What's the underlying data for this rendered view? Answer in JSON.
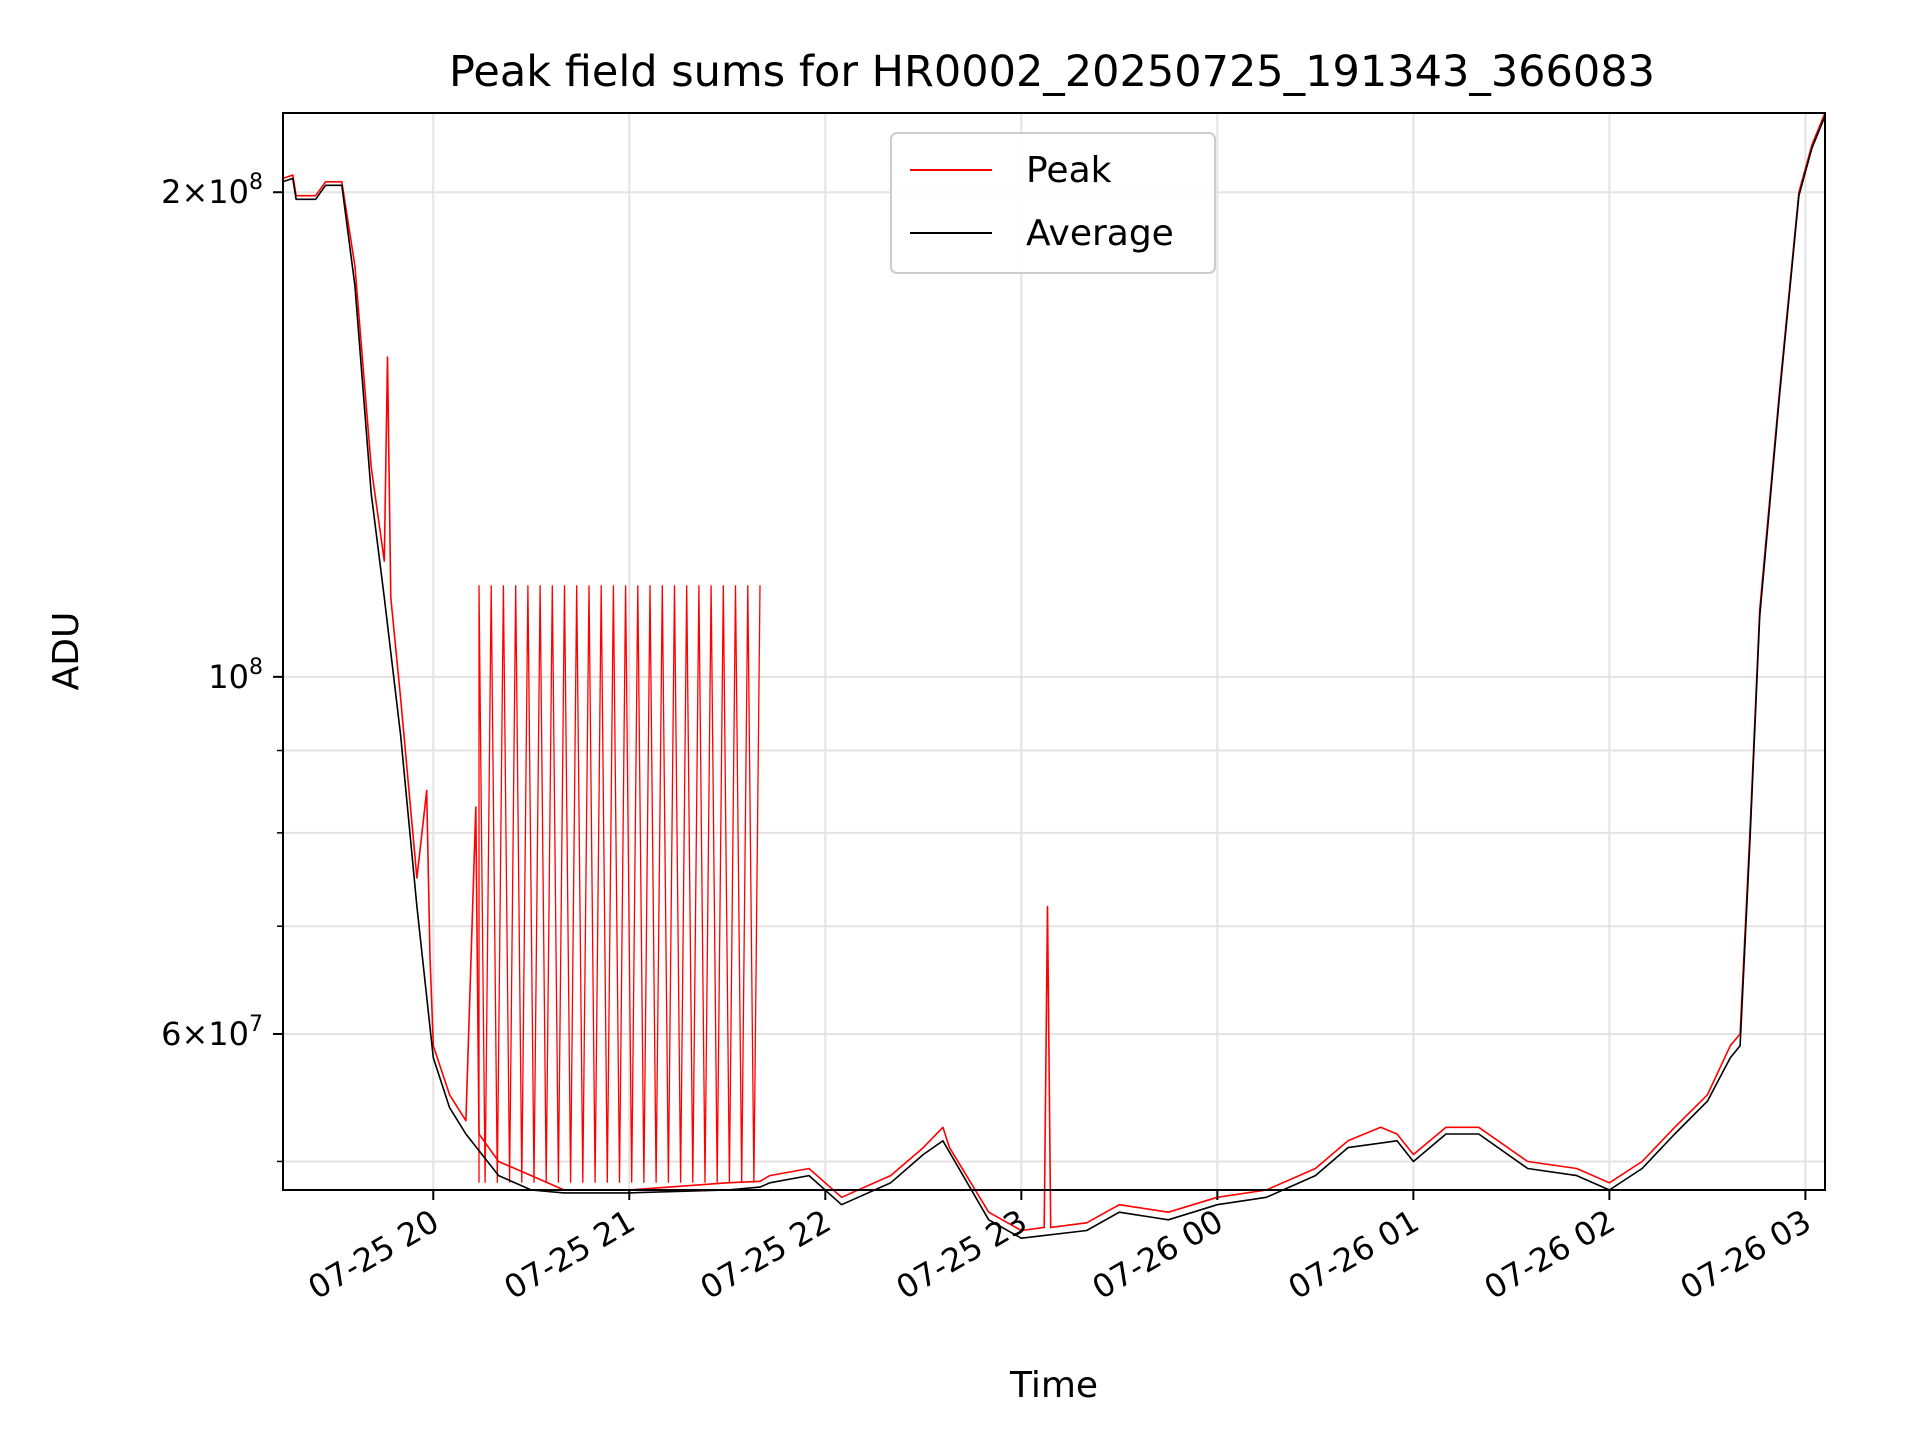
{
  "chart_data": {
    "type": "line",
    "title": "Peak field sums for HR0002_20250725_191343_366083",
    "xlabel": "Time",
    "ylabel": "ADU",
    "yscale": "log",
    "grid": true,
    "legend_position": "top-center",
    "xlim": [
      "2025-07-25 19:14",
      "2025-07-26 03:06"
    ],
    "ylim": [
      48000000,
      224000000
    ],
    "x_ticks": [
      "07-25 20",
      "07-25 21",
      "07-25 22",
      "07-25 23",
      "07-26 00",
      "07-26 01",
      "07-26 02",
      "07-26 03"
    ],
    "y_ticks": [
      {
        "label_base": "2×10",
        "label_exp": "8"
      },
      {
        "label_base": "10",
        "label_exp": "8"
      },
      {
        "label_base": "6×10",
        "label_exp": "7"
      }
    ],
    "series": [
      {
        "name": "Peak",
        "color": "#ff0000",
        "points": [
          [
            "2025-07-25 19:14",
            204000000
          ],
          [
            "2025-07-25 19:17",
            205000000
          ],
          [
            "2025-07-25 19:18",
            199000000
          ],
          [
            "2025-07-25 19:24",
            199000000
          ],
          [
            "2025-07-25 19:27",
            203000000
          ],
          [
            "2025-07-25 19:32",
            203000000
          ],
          [
            "2025-07-25 19:36",
            180000000
          ],
          [
            "2025-07-25 19:41",
            135000000
          ],
          [
            "2025-07-25 19:45",
            118000000
          ],
          [
            "2025-07-25 19:46",
            158000000
          ],
          [
            "2025-07-25 19:47",
            112000000
          ],
          [
            "2025-07-25 19:50",
            97000000
          ],
          [
            "2025-07-25 19:55",
            75000000
          ],
          [
            "2025-07-25 19:58",
            85000000
          ],
          [
            "2025-07-25 19:59",
            67000000
          ],
          [
            "2025-07-25 20:00",
            59000000
          ],
          [
            "2025-07-25 20:05",
            55000000
          ],
          [
            "2025-07-25 20:10",
            53000000
          ],
          [
            "2025-07-25 20:13",
            83000000
          ],
          [
            "2025-07-25 20:14",
            52000000
          ],
          [
            "2025-07-25 20:20",
            50000000
          ],
          [
            "2025-07-25 20:30",
            49000000
          ],
          [
            "2025-07-25 20:40",
            48000000
          ],
          [
            "2025-07-25 21:00",
            48000000
          ],
          [
            "2025-07-25 21:30",
            48500000
          ],
          [
            "2025-07-25 21:40",
            48600000
          ],
          [
            "2025-07-25 21:43",
            49000000
          ],
          [
            "2025-07-25 21:55",
            49500000
          ],
          [
            "2025-07-25 22:05",
            47500000
          ],
          [
            "2025-07-25 22:20",
            49000000
          ],
          [
            "2025-07-25 22:30",
            51000000
          ],
          [
            "2025-07-25 22:36",
            52500000
          ],
          [
            "2025-07-25 22:38",
            51000000
          ],
          [
            "2025-07-25 22:50",
            46500000
          ],
          [
            "2025-07-25 23:00",
            45300000
          ],
          [
            "2025-07-25 23:07",
            45500000
          ],
          [
            "2025-07-25 23:08",
            72000000
          ],
          [
            "2025-07-25 23:09",
            45500000
          ],
          [
            "2025-07-25 23:20",
            45800000
          ],
          [
            "2025-07-25 23:30",
            47000000
          ],
          [
            "2025-07-25 23:45",
            46500000
          ],
          [
            "2025-07-26 00:00",
            47500000
          ],
          [
            "2025-07-26 00:15",
            48000000
          ],
          [
            "2025-07-26 00:30",
            49500000
          ],
          [
            "2025-07-26 00:40",
            51500000
          ],
          [
            "2025-07-26 00:50",
            52500000
          ],
          [
            "2025-07-26 00:55",
            52000000
          ],
          [
            "2025-07-26 01:00",
            50500000
          ],
          [
            "2025-07-26 01:10",
            52500000
          ],
          [
            "2025-07-26 01:20",
            52500000
          ],
          [
            "2025-07-26 01:35",
            50000000
          ],
          [
            "2025-07-26 01:50",
            49500000
          ],
          [
            "2025-07-26 02:00",
            48500000
          ],
          [
            "2025-07-26 02:10",
            50000000
          ],
          [
            "2025-07-26 02:20",
            52500000
          ],
          [
            "2025-07-26 02:30",
            55000000
          ],
          [
            "2025-07-26 02:37",
            59000000
          ],
          [
            "2025-07-26 02:40",
            60000000
          ],
          [
            "2025-07-26 02:43",
            80000000
          ],
          [
            "2025-07-26 02:46",
            110000000
          ],
          [
            "2025-07-26 02:52",
            150000000
          ],
          [
            "2025-07-26 02:58",
            200000000
          ],
          [
            "2025-07-26 03:02",
            214000000
          ],
          [
            "2025-07-26 03:06",
            224000000
          ]
        ],
        "spikes": [
          {
            "start": "2025-07-25 20:14",
            "end": "2025-07-25 21:40",
            "level": 114000000
          }
        ]
      },
      {
        "name": "Average",
        "color": "#000000",
        "points": [
          [
            "2025-07-25 19:14",
            203000000
          ],
          [
            "2025-07-25 19:17",
            204000000
          ],
          [
            "2025-07-25 19:18",
            198000000
          ],
          [
            "2025-07-25 19:24",
            198000000
          ],
          [
            "2025-07-25 19:27",
            202000000
          ],
          [
            "2025-07-25 19:32",
            202000000
          ],
          [
            "2025-07-25 19:36",
            175000000
          ],
          [
            "2025-07-25 19:41",
            130000000
          ],
          [
            "2025-07-25 19:45",
            112000000
          ],
          [
            "2025-07-25 19:50",
            92000000
          ],
          [
            "2025-07-25 19:55",
            72000000
          ],
          [
            "2025-07-25 20:00",
            58000000
          ],
          [
            "2025-07-25 20:05",
            54000000
          ],
          [
            "2025-07-25 20:10",
            52000000
          ],
          [
            "2025-07-25 20:20",
            49000000
          ],
          [
            "2025-07-25 20:30",
            48000000
          ],
          [
            "2025-07-25 20:40",
            47800000
          ],
          [
            "2025-07-25 21:00",
            47800000
          ],
          [
            "2025-07-25 21:30",
            48000000
          ],
          [
            "2025-07-25 21:40",
            48200000
          ],
          [
            "2025-07-25 21:43",
            48500000
          ],
          [
            "2025-07-25 21:55",
            49000000
          ],
          [
            "2025-07-25 22:05",
            47000000
          ],
          [
            "2025-07-25 22:20",
            48500000
          ],
          [
            "2025-07-25 22:30",
            50500000
          ],
          [
            "2025-07-25 22:36",
            51500000
          ],
          [
            "2025-07-25 22:50",
            46000000
          ],
          [
            "2025-07-25 23:00",
            44800000
          ],
          [
            "2025-07-25 23:20",
            45300000
          ],
          [
            "2025-07-25 23:30",
            46500000
          ],
          [
            "2025-07-25 23:45",
            46000000
          ],
          [
            "2025-07-26 00:00",
            47000000
          ],
          [
            "2025-07-26 00:15",
            47500000
          ],
          [
            "2025-07-26 00:30",
            49000000
          ],
          [
            "2025-07-26 00:40",
            51000000
          ],
          [
            "2025-07-26 00:55",
            51500000
          ],
          [
            "2025-07-26 01:00",
            50000000
          ],
          [
            "2025-07-26 01:10",
            52000000
          ],
          [
            "2025-07-26 01:20",
            52000000
          ],
          [
            "2025-07-26 01:35",
            49500000
          ],
          [
            "2025-07-26 01:50",
            49000000
          ],
          [
            "2025-07-26 02:00",
            48000000
          ],
          [
            "2025-07-26 02:10",
            49500000
          ],
          [
            "2025-07-26 02:20",
            52000000
          ],
          [
            "2025-07-26 02:30",
            54500000
          ],
          [
            "2025-07-26 02:37",
            58000000
          ],
          [
            "2025-07-26 02:40",
            59000000
          ],
          [
            "2025-07-26 02:43",
            79000000
          ],
          [
            "2025-07-26 02:46",
            109000000
          ],
          [
            "2025-07-26 02:52",
            149000000
          ],
          [
            "2025-07-26 02:58",
            199000000
          ],
          [
            "2025-07-26 03:02",
            213000000
          ],
          [
            "2025-07-26 03:06",
            223000000
          ]
        ]
      }
    ]
  }
}
